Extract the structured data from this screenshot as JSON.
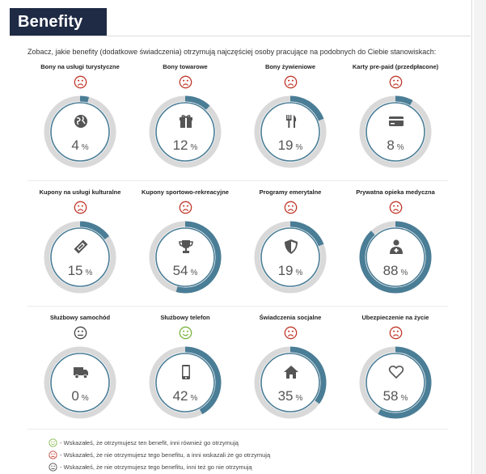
{
  "header": {
    "title": "Benefity"
  },
  "intro": "Zobacz, jakie benefity (dodatkowe świadczenia) otrzymują najczęściej osoby pracujące na podobnych do Ciebie stanowiskach:",
  "colors": {
    "accent": "#4a7d96",
    "ring": "#d9d9d9",
    "circle_border": "#4a7d96",
    "sad": "#c0392b",
    "happy": "#7cb342",
    "neutral": "#444444",
    "icon": "#555555"
  },
  "benefits": [
    {
      "label": "Bony na usługi turystyczne",
      "value": 4,
      "unit": "%",
      "face": "sad",
      "icon": "globe-icon"
    },
    {
      "label": "Bony towarowe",
      "value": 12,
      "unit": "%",
      "face": "sad",
      "icon": "gift-icon"
    },
    {
      "label": "Bony żywieniowe",
      "value": 19,
      "unit": "%",
      "face": "sad",
      "icon": "cutlery-icon"
    },
    {
      "label": "Karty pre-paid (przedpłacone)",
      "value": 8,
      "unit": "%",
      "face": "sad",
      "icon": "credit-card-icon"
    },
    {
      "label": "Kupony na usługi kulturalne",
      "value": 15,
      "unit": "%",
      "face": "sad",
      "icon": "ticket-icon"
    },
    {
      "label": "Kupony sportowo-rekreacyjne",
      "value": 54,
      "unit": "%",
      "face": "sad",
      "icon": "trophy-icon"
    },
    {
      "label": "Programy emerytalne",
      "value": 19,
      "unit": "%",
      "face": "sad",
      "icon": "shield-icon"
    },
    {
      "label": "Prywatna opieka medyczna",
      "value": 88,
      "unit": "%",
      "face": "sad",
      "icon": "doctor-icon"
    },
    {
      "label": "Służbowy samochód",
      "value": 0,
      "unit": "%",
      "face": "neutral",
      "icon": "truck-icon"
    },
    {
      "label": "Służbowy telefon",
      "value": 42,
      "unit": "%",
      "face": "happy",
      "icon": "phone-icon"
    },
    {
      "label": "Świadczenia socjalne",
      "value": 35,
      "unit": "%",
      "face": "sad",
      "icon": "home-icon"
    },
    {
      "label": "Ubezpieczenie na życie",
      "value": 58,
      "unit": "%",
      "face": "sad",
      "icon": "heart-icon"
    }
  ],
  "legend": [
    {
      "face": "happy",
      "text": "- Wskazałeś, że otrzymujesz ten benefit, inni również go otrzymują"
    },
    {
      "face": "sad",
      "text": "- Wskazałeś, że nie otrzymujesz tego benefitu, a inni wskazali że go otrzymują"
    },
    {
      "face": "neutral",
      "text": "- Wskazałeś, że nie otrzymujesz tego benefitu, inni też go nie otrzymują"
    }
  ]
}
